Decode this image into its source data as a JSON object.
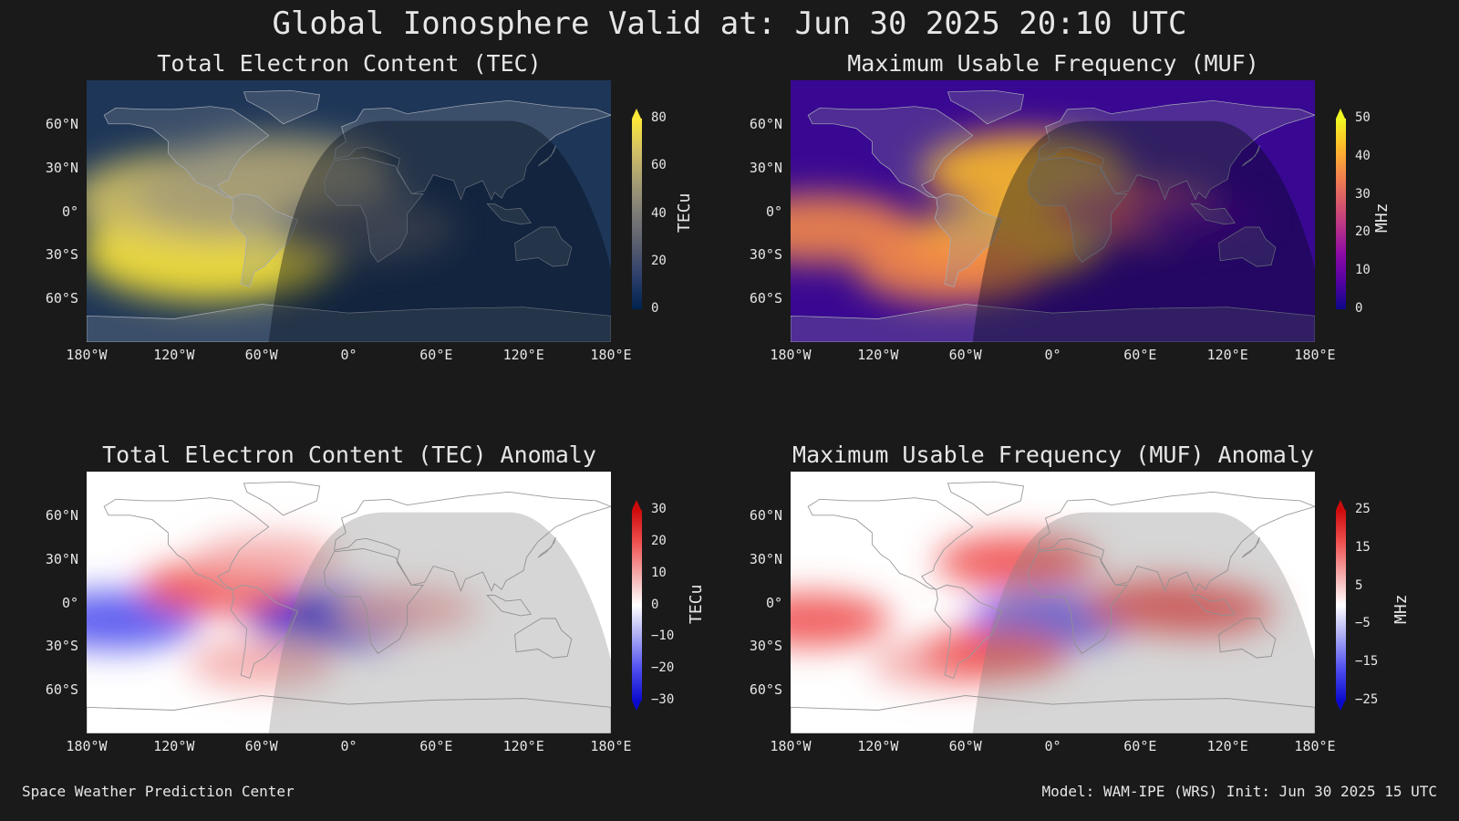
{
  "figure": {
    "title": "Global Ionosphere Valid at: Jun 30 2025 20:10 UTC",
    "footer_left": "Space Weather Prediction Center",
    "footer_right": "Model: WAM-IPE (WRS) Init: Jun 30 2025 15 UTC"
  },
  "colors": {
    "background": "#1a1a1a",
    "text": "#e6e6e6",
    "tec_cmap": [
      "#00224e",
      "#2c3e6b",
      "#575d6d",
      "#7c7b78",
      "#a59c74",
      "#d3c165",
      "#fee838"
    ],
    "muf_cmap": [
      "#0d0887",
      "#5302a3",
      "#8b0aa5",
      "#b83289",
      "#db5c68",
      "#f48849",
      "#febd2a",
      "#f0f921"
    ],
    "anomaly_cmap": [
      "#0a0acc",
      "#4f4ff0",
      "#a8a8f4",
      "#ffffff",
      "#f4a8a8",
      "#f04f4f",
      "#cc0a0a"
    ]
  },
  "chart_data": [
    {
      "type": "heatmap",
      "title": "Total Electron Content (TEC)",
      "colorbar_label": "TECu",
      "colorbar_ticks": [
        "80",
        "60",
        "40",
        "20",
        "0"
      ],
      "value_range": [
        0,
        85
      ],
      "lat_ticks": [
        "60°N",
        "30°N",
        "0°",
        "30°S",
        "60°S"
      ],
      "lon_ticks": [
        "180°W",
        "120°W",
        "60°W",
        "0°",
        "60°E",
        "120°E",
        "180°E"
      ],
      "xlim": [
        -180,
        180
      ],
      "ylim": [
        -90,
        90
      ],
      "features": [
        {
          "lon": -95,
          "lat": -28,
          "value": 80
        },
        {
          "lon": -105,
          "lat": 8,
          "value": 75
        },
        {
          "lon": -48,
          "lat": 24,
          "value": 60
        },
        {
          "lon": -75,
          "lat": 10,
          "value": 55
        },
        {
          "lon": 10,
          "lat": -12,
          "value": 35
        }
      ]
    },
    {
      "type": "heatmap",
      "title": "Maximum Usable Frequency (MUF)",
      "colorbar_label": "MHz",
      "colorbar_ticks": [
        "50",
        "40",
        "30",
        "20",
        "10",
        "0"
      ],
      "value_range": [
        0,
        52
      ],
      "lat_ticks": [
        "60°N",
        "30°N",
        "0°",
        "30°S",
        "60°S"
      ],
      "lon_ticks": [
        "180°W",
        "120°W",
        "60°W",
        "0°",
        "60°E",
        "120°E",
        "180°E"
      ],
      "xlim": [
        -180,
        180
      ],
      "ylim": [
        -90,
        90
      ],
      "features": [
        {
          "lon": -20,
          "lat": 28,
          "value": 48
        },
        {
          "lon": -35,
          "lat": -22,
          "value": 45
        },
        {
          "lon": -160,
          "lat": -12,
          "value": 40
        },
        {
          "lon": -70,
          "lat": -40,
          "value": 38
        },
        {
          "lon": 60,
          "lat": 0,
          "value": 30
        },
        {
          "lon": 100,
          "lat": -5,
          "value": 5
        }
      ]
    },
    {
      "type": "heatmap",
      "title": "Total Electron Content (TEC) Anomaly",
      "colorbar_label": "TECu",
      "colorbar_ticks": [
        "30",
        "20",
        "10",
        "0",
        "−10",
        "−20",
        "−30"
      ],
      "value_range": [
        -35,
        35
      ],
      "lat_ticks": [
        "60°N",
        "30°N",
        "0°",
        "30°S",
        "60°S"
      ],
      "lon_ticks": [
        "180°W",
        "120°W",
        "60°W",
        "0°",
        "60°E",
        "120°E",
        "180°E"
      ],
      "xlim": [
        -180,
        180
      ],
      "ylim": [
        -90,
        90
      ],
      "features": [
        {
          "lon": -160,
          "lat": -12,
          "value": -25
        },
        {
          "lon": -10,
          "lat": -10,
          "value": -30
        },
        {
          "lon": -90,
          "lat": 10,
          "value": 18
        },
        {
          "lon": -55,
          "lat": 30,
          "value": 12
        },
        {
          "lon": -60,
          "lat": -42,
          "value": 12
        },
        {
          "lon": 40,
          "lat": -5,
          "value": 8
        }
      ]
    },
    {
      "type": "heatmap",
      "title": "Maximum Usable Frequency (MUF) Anomaly",
      "colorbar_label": "MHz",
      "colorbar_ticks": [
        "25",
        "15",
        "5",
        "−5",
        "−15",
        "−25"
      ],
      "value_range": [
        -28,
        28
      ],
      "lat_ticks": [
        "60°N",
        "30°N",
        "0°",
        "30°S",
        "60°S"
      ],
      "lon_ticks": [
        "180°W",
        "120°W",
        "60°W",
        "0°",
        "60°E",
        "120°E",
        "180°E"
      ],
      "xlim": [
        -180,
        180
      ],
      "ylim": [
        -90,
        90
      ],
      "features": [
        {
          "lon": -165,
          "lat": -12,
          "value": 18
        },
        {
          "lon": -25,
          "lat": 28,
          "value": 20
        },
        {
          "lon": 0,
          "lat": -12,
          "value": -22
        },
        {
          "lon": 75,
          "lat": -2,
          "value": 18
        },
        {
          "lon": 100,
          "lat": -5,
          "value": 15
        },
        {
          "lon": -75,
          "lat": -42,
          "value": 12
        },
        {
          "lon": -40,
          "lat": -35,
          "value": 14
        }
      ]
    }
  ]
}
